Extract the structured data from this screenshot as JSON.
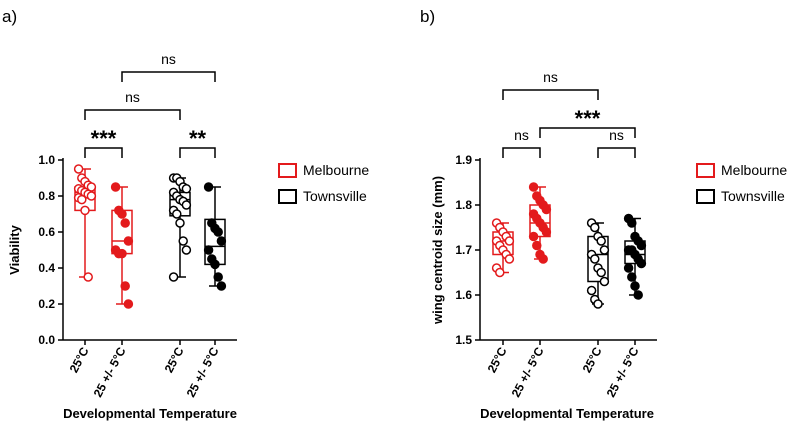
{
  "chart_data": [
    {
      "type": "box",
      "panel_label": "a)",
      "ylabel": "Viability",
      "xlabel": "Developmental Temperature",
      "ylim": [
        0.0,
        1.0
      ],
      "yticks": [
        "0.0",
        "0.2",
        "0.4",
        "0.6",
        "0.8",
        "1.0"
      ],
      "categories": [
        "25°C",
        "25 +/- 5°C",
        "25°C",
        "25 +/- 5°C"
      ],
      "groups": [
        {
          "series": "Melbourne",
          "condition": "25°C",
          "min": 0.35,
          "q1": 0.72,
          "median": 0.82,
          "q3": 0.85,
          "max": 0.95,
          "points": [
            0.95,
            0.9,
            0.88,
            0.86,
            0.85,
            0.84,
            0.83,
            0.82,
            0.81,
            0.8,
            0.79,
            0.78,
            0.72,
            0.35
          ]
        },
        {
          "series": "Melbourne",
          "condition": "25 +/- 5°C",
          "min": 0.2,
          "q1": 0.48,
          "median": 0.55,
          "q3": 0.72,
          "max": 0.85,
          "points": [
            0.85,
            0.72,
            0.7,
            0.65,
            0.55,
            0.5,
            0.48,
            0.48,
            0.3,
            0.2
          ]
        },
        {
          "series": "Townsville",
          "condition": "25°C",
          "min": 0.35,
          "q1": 0.69,
          "median": 0.78,
          "q3": 0.82,
          "max": 0.9,
          "points": [
            0.9,
            0.9,
            0.88,
            0.85,
            0.84,
            0.82,
            0.8,
            0.78,
            0.77,
            0.75,
            0.72,
            0.7,
            0.65,
            0.55,
            0.5,
            0.35
          ]
        },
        {
          "series": "Townsville",
          "condition": "25 +/- 5°C",
          "min": 0.3,
          "q1": 0.42,
          "median": 0.52,
          "q3": 0.67,
          "max": 0.85,
          "points": [
            0.85,
            0.65,
            0.62,
            0.6,
            0.55,
            0.5,
            0.45,
            0.42,
            0.35,
            0.3
          ]
        }
      ],
      "comparisons": [
        {
          "from": 0,
          "to": 1,
          "label": "***"
        },
        {
          "from": 2,
          "to": 3,
          "label": "**"
        },
        {
          "from": 0,
          "to": 2,
          "label": "ns"
        },
        {
          "from": 1,
          "to": 3,
          "label": "ns"
        }
      ]
    },
    {
      "type": "box",
      "panel_label": "b)",
      "ylabel": "wing centroid size (mm)",
      "xlabel": "Developmental Temperature",
      "ylim": [
        1.5,
        1.9
      ],
      "yticks": [
        "1.5",
        "1.6",
        "1.7",
        "1.8",
        "1.9"
      ],
      "categories": [
        "25°C",
        "25 +/- 5°C",
        "25°C",
        "25 +/- 5°C"
      ],
      "groups": [
        {
          "series": "Melbourne",
          "condition": "25°C",
          "min": 1.65,
          "q1": 1.69,
          "median": 1.72,
          "q3": 1.74,
          "max": 1.76,
          "points": [
            1.76,
            1.75,
            1.74,
            1.73,
            1.72,
            1.72,
            1.71,
            1.7,
            1.69,
            1.68,
            1.66,
            1.65
          ]
        },
        {
          "series": "Melbourne",
          "condition": "25 +/- 5°C",
          "min": 1.68,
          "q1": 1.73,
          "median": 1.76,
          "q3": 1.8,
          "max": 1.84,
          "points": [
            1.84,
            1.82,
            1.81,
            1.8,
            1.79,
            1.78,
            1.77,
            1.76,
            1.75,
            1.74,
            1.73,
            1.71,
            1.69,
            1.68
          ]
        },
        {
          "series": "Townsville",
          "condition": "25°C",
          "min": 1.58,
          "q1": 1.63,
          "median": 1.69,
          "q3": 1.73,
          "max": 1.76,
          "points": [
            1.76,
            1.75,
            1.73,
            1.72,
            1.7,
            1.69,
            1.68,
            1.66,
            1.65,
            1.63,
            1.61,
            1.59,
            1.58
          ]
        },
        {
          "series": "Townsville",
          "condition": "25 +/- 5°C",
          "min": 1.6,
          "q1": 1.67,
          "median": 1.69,
          "q3": 1.72,
          "max": 1.77,
          "points": [
            1.77,
            1.76,
            1.73,
            1.72,
            1.71,
            1.7,
            1.7,
            1.69,
            1.68,
            1.67,
            1.66,
            1.64,
            1.62,
            1.6
          ]
        }
      ],
      "comparisons": [
        {
          "from": 0,
          "to": 1,
          "label": "ns"
        },
        {
          "from": 2,
          "to": 3,
          "label": "ns"
        },
        {
          "from": 0,
          "to": 2,
          "label": "ns"
        },
        {
          "from": 1,
          "to": 3,
          "label": "***"
        }
      ]
    }
  ],
  "legend": [
    {
      "name": "Melbourne",
      "color": "#e31a1c"
    },
    {
      "name": "Townsville",
      "color": "#000000"
    }
  ],
  "colors": {
    "melbourne": "#e31a1c",
    "townsville": "#000000"
  }
}
